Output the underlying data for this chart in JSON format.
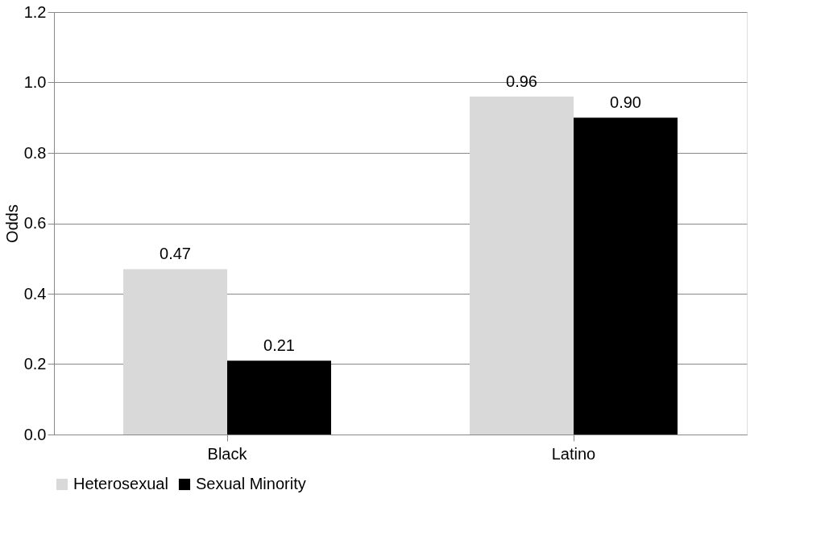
{
  "chart_data": {
    "type": "bar",
    "ylabel": "Odds",
    "categories": [
      "Black",
      "Latino"
    ],
    "series": [
      {
        "name": "Heterosexual",
        "color": "#d9d9d9",
        "values": [
          0.47,
          0.96
        ],
        "value_labels": [
          "0.47",
          "0.96"
        ]
      },
      {
        "name": "Sexual Minority",
        "color": "#000000",
        "values": [
          0.21,
          0.9
        ],
        "value_labels": [
          "0.21",
          "0.90"
        ]
      }
    ],
    "ylim": [
      0,
      1.2
    ],
    "yticks": [
      {
        "value": 0,
        "label": "0.0"
      },
      0.2,
      0.4,
      0.6,
      0.8,
      {
        "value": 1,
        "label": "1.0"
      },
      1.2
    ],
    "grid": "y",
    "legend": "bottom"
  }
}
